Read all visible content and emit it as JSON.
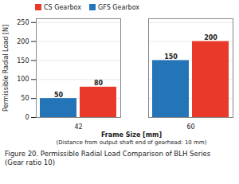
{
  "chart_data": {
    "type": "bar",
    "categories": [
      "42",
      "60"
    ],
    "series": [
      {
        "name": "GFS Gearbox",
        "color": "#2474b8",
        "values": [
          50,
          150
        ]
      },
      {
        "name": "CS Gearbox",
        "color": "#e8392a",
        "values": [
          80,
          200
        ]
      }
    ],
    "ylabel": "Permissible Radial Load [N]",
    "xlabel": "Frame Size [mm]",
    "annotations": [
      "(Distance from output shaft end of gearhead: 10 mm)"
    ],
    "caption": [
      "Figure 20. Permissible Radial Load Comparison of BLH Series",
      "(Gear ratio 10)"
    ],
    "ylim": [
      0,
      260
    ],
    "yticks": [
      0,
      50,
      100,
      150,
      200,
      250
    ],
    "grid": true,
    "data_labels": true,
    "legend": "upper left"
  }
}
